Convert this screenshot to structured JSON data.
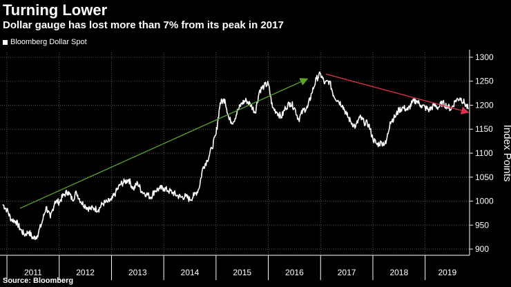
{
  "header": {
    "title": "Turning Lower",
    "subtitle": "Dollar gauge has lost more than 7% from its peak in 2017"
  },
  "legend": {
    "label": "Bloomberg Dollar Spot",
    "color": "#ffffff"
  },
  "source": "Source: Bloomberg",
  "colors": {
    "background": "#000000",
    "line": "#ffffff",
    "grid": "#5a5a5a",
    "up_arrow": "#5fa52a",
    "down_arrow": "#e0304a"
  },
  "chart_data": {
    "type": "line",
    "title": "Turning Lower",
    "xlabel": "",
    "ylabel": "Index Points",
    "ylim": [
      890,
      1310
    ],
    "xlim": [
      2010.92,
      2019.85
    ],
    "y_ticks": [
      900,
      950,
      1000,
      1050,
      1100,
      1150,
      1200,
      1250,
      1300
    ],
    "x_tick_labels": [
      "2011",
      "2012",
      "2013",
      "2014",
      "2015",
      "2016",
      "2017",
      "2018",
      "2019"
    ],
    "grid": true,
    "legend_position": "top-left",
    "series": [
      {
        "name": "Bloomberg Dollar Spot",
        "points": [
          [
            2010.92,
            993
          ],
          [
            2011.0,
            982
          ],
          [
            2011.08,
            962
          ],
          [
            2011.17,
            958
          ],
          [
            2011.25,
            943
          ],
          [
            2011.33,
            930
          ],
          [
            2011.42,
            936
          ],
          [
            2011.5,
            922
          ],
          [
            2011.58,
            928
          ],
          [
            2011.67,
            955
          ],
          [
            2011.75,
            988
          ],
          [
            2011.83,
            965
          ],
          [
            2011.92,
            1000
          ],
          [
            2012.0,
            998
          ],
          [
            2012.08,
            1012
          ],
          [
            2012.17,
            1020
          ],
          [
            2012.25,
            1003
          ],
          [
            2012.33,
            1018
          ],
          [
            2012.42,
            998
          ],
          [
            2012.5,
            990
          ],
          [
            2012.58,
            984
          ],
          [
            2012.67,
            985
          ],
          [
            2012.75,
            982
          ],
          [
            2012.83,
            995
          ],
          [
            2012.92,
            998
          ],
          [
            2013.0,
            1002
          ],
          [
            2013.08,
            1018
          ],
          [
            2013.17,
            1035
          ],
          [
            2013.25,
            1040
          ],
          [
            2013.33,
            1045
          ],
          [
            2013.42,
            1025
          ],
          [
            2013.5,
            1038
          ],
          [
            2013.58,
            1020
          ],
          [
            2013.67,
            1015
          ],
          [
            2013.75,
            1008
          ],
          [
            2013.83,
            1022
          ],
          [
            2013.92,
            1026
          ],
          [
            2014.0,
            1027
          ],
          [
            2014.08,
            1022
          ],
          [
            2014.17,
            1018
          ],
          [
            2014.25,
            1012
          ],
          [
            2014.33,
            1008
          ],
          [
            2014.42,
            1010
          ],
          [
            2014.5,
            1003
          ],
          [
            2014.58,
            1012
          ],
          [
            2014.67,
            1025
          ],
          [
            2014.75,
            1070
          ],
          [
            2014.83,
            1085
          ],
          [
            2014.92,
            1110
          ],
          [
            2015.0,
            1140
          ],
          [
            2015.08,
            1205
          ],
          [
            2015.17,
            1212
          ],
          [
            2015.25,
            1170
          ],
          [
            2015.33,
            1165
          ],
          [
            2015.42,
            1190
          ],
          [
            2015.5,
            1205
          ],
          [
            2015.58,
            1210
          ],
          [
            2015.67,
            1200
          ],
          [
            2015.75,
            1185
          ],
          [
            2015.83,
            1230
          ],
          [
            2015.92,
            1240
          ],
          [
            2016.0,
            1245
          ],
          [
            2016.08,
            1195
          ],
          [
            2016.17,
            1185
          ],
          [
            2016.25,
            1175
          ],
          [
            2016.33,
            1195
          ],
          [
            2016.42,
            1205
          ],
          [
            2016.5,
            1195
          ],
          [
            2016.58,
            1170
          ],
          [
            2016.67,
            1190
          ],
          [
            2016.75,
            1195
          ],
          [
            2016.83,
            1225
          ],
          [
            2016.92,
            1255
          ],
          [
            2017.0,
            1265
          ],
          [
            2017.08,
            1245
          ],
          [
            2017.17,
            1250
          ],
          [
            2017.25,
            1220
          ],
          [
            2017.33,
            1210
          ],
          [
            2017.42,
            1200
          ],
          [
            2017.5,
            1180
          ],
          [
            2017.58,
            1165
          ],
          [
            2017.67,
            1155
          ],
          [
            2017.75,
            1175
          ],
          [
            2017.83,
            1165
          ],
          [
            2017.92,
            1160
          ],
          [
            2018.0,
            1130
          ],
          [
            2018.08,
            1118
          ],
          [
            2018.17,
            1122
          ],
          [
            2018.25,
            1120
          ],
          [
            2018.33,
            1165
          ],
          [
            2018.42,
            1175
          ],
          [
            2018.5,
            1190
          ],
          [
            2018.58,
            1195
          ],
          [
            2018.67,
            1190
          ],
          [
            2018.75,
            1205
          ],
          [
            2018.83,
            1210
          ],
          [
            2018.92,
            1200
          ],
          [
            2019.0,
            1195
          ],
          [
            2019.08,
            1190
          ],
          [
            2019.17,
            1200
          ],
          [
            2019.25,
            1195
          ],
          [
            2019.33,
            1205
          ],
          [
            2019.42,
            1198
          ],
          [
            2019.5,
            1192
          ],
          [
            2019.58,
            1210
          ],
          [
            2019.67,
            1215
          ],
          [
            2019.75,
            1205
          ],
          [
            2019.83,
            1192
          ]
        ]
      }
    ],
    "annotations": [
      {
        "type": "arrow",
        "color": "green",
        "from": [
          2011.25,
          985
        ],
        "to": [
          2016.75,
          1255
        ]
      },
      {
        "type": "arrow",
        "color": "red",
        "from": [
          2017.1,
          1265
        ],
        "to": [
          2019.83,
          1185
        ]
      }
    ]
  }
}
